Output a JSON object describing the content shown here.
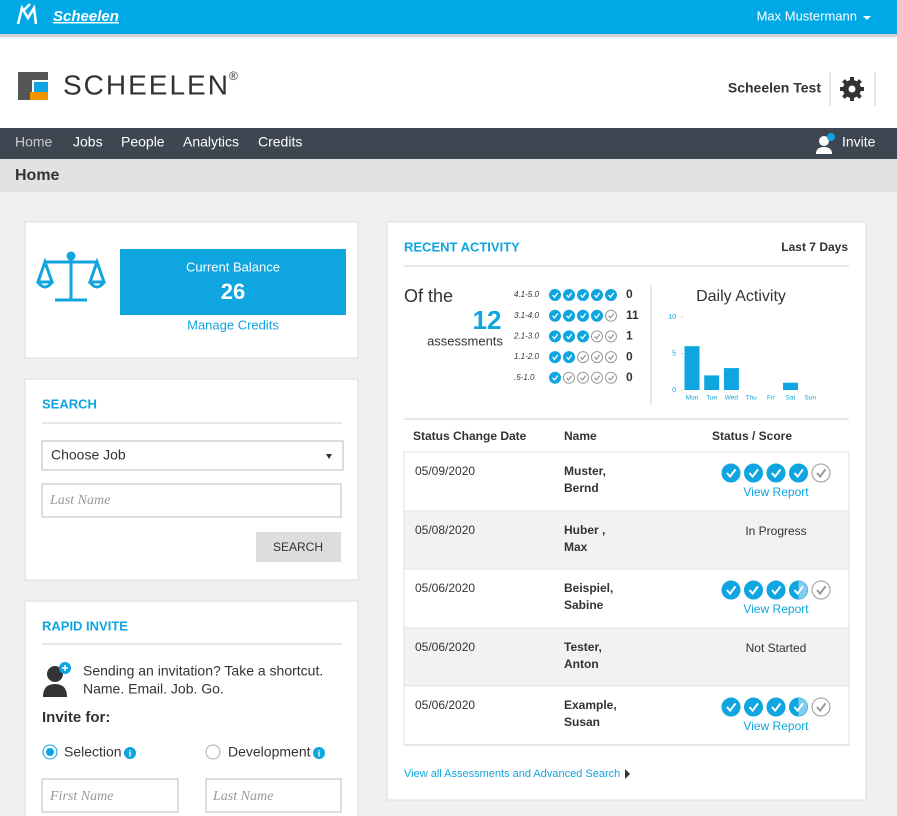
{
  "topbar": {
    "brand": "Scheelen",
    "user": "Max Mustermann"
  },
  "header": {
    "logo": "SCHEELEN",
    "logo_mark": "®",
    "org": "Scheelen Test"
  },
  "nav": {
    "items": [
      "Home",
      "Jobs",
      "People",
      "Analytics",
      "Credits"
    ],
    "invite": "Invite"
  },
  "breadcrumb": "Home",
  "balance": {
    "label": "Current Balance",
    "value": 26,
    "link": "Manage Credits"
  },
  "search": {
    "title": "SEARCH",
    "job_placeholder": "Choose Job",
    "last_name_placeholder": "Last Name",
    "button": "SEARCH"
  },
  "rapid_invite": {
    "title": "RAPID INVITE",
    "text_1": "Sending an invitation? Take a shortcut.",
    "text_2": "Name. Email. Job. Go.",
    "invite_for": "Invite for:",
    "options": [
      "Selection",
      "Development"
    ],
    "first_name_placeholder": "First Name",
    "last_name_placeholder": "Last Name"
  },
  "recent_activity": {
    "title": "RECENT ACTIVITY",
    "period": "Last 7 Days",
    "of_the": "Of the",
    "count": 12,
    "assessments": "assessments",
    "bands": [
      {
        "range": "4.1-5.0",
        "count": 0
      },
      {
        "range": "3.1-4.0",
        "count": 11
      },
      {
        "range": "2.1-3.0",
        "count": 1
      },
      {
        "range": "1.1-2.0",
        "count": 0
      },
      {
        "range": ".5-1.0",
        "count": 0
      }
    ],
    "columns": [
      "Status Change Date",
      "Name",
      "Status / Score"
    ],
    "rows": [
      {
        "date": "05/09/2020",
        "name": [
          "Muster,",
          "Bernd"
        ],
        "link": "View Report"
      },
      {
        "date": "05/08/2020",
        "name": [
          "Huber ,",
          "Max"
        ],
        "status": "In Progress"
      },
      {
        "date": "05/06/2020",
        "name": [
          "Beispiel,",
          "Sabine"
        ],
        "link": "View Report"
      },
      {
        "date": "05/06/2020",
        "name": [
          "Tester,",
          "Anton"
        ],
        "status": "Not Started"
      },
      {
        "date": "05/06/2020",
        "name": [
          "Example,",
          "Susan"
        ],
        "link": "View Report"
      }
    ],
    "footer_link": "View all Assessments and Advanced Search"
  },
  "chart_data": {
    "type": "bar",
    "title": "Daily Activity",
    "categories": [
      "Mon",
      "Tue",
      "Wed",
      "Thu",
      "Fri",
      "Sat",
      "Sun"
    ],
    "values": [
      6,
      2,
      3,
      0,
      0,
      1,
      0
    ],
    "ylim": [
      0,
      10
    ],
    "yticks": [
      0,
      5,
      10
    ],
    "color": "#0ea5e0"
  }
}
